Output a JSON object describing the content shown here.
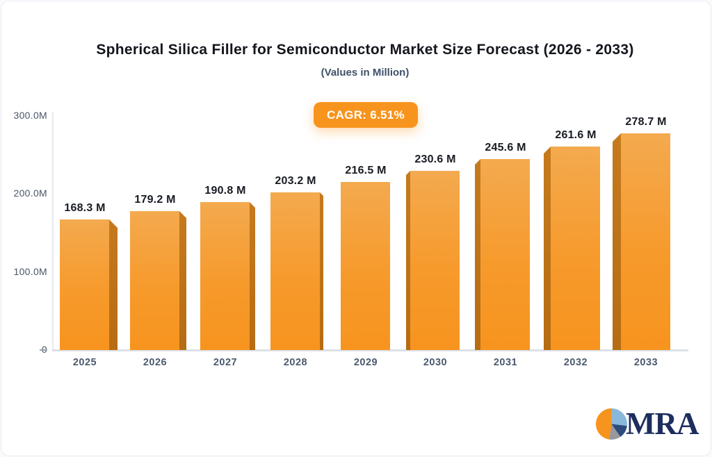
{
  "header": {
    "title": "Spherical Silica Filler for Semiconductor Market Size Forecast (2026 - 2033)",
    "subtitle": "(Values in Million)",
    "cagr_badge": "CAGR: 6.51%"
  },
  "chart_data": {
    "type": "bar",
    "title": "Spherical Silica Filler for Semiconductor Market Size Forecast (2026 - 2033)",
    "subtitle": "(Values in Million)",
    "cagr": "6.51%",
    "categories": [
      "2025",
      "2026",
      "2027",
      "2028",
      "2029",
      "2030",
      "2031",
      "2032",
      "2033"
    ],
    "values": [
      168.3,
      179.2,
      190.8,
      203.2,
      216.5,
      230.6,
      245.6,
      261.6,
      278.7
    ],
    "bar_labels": [
      "168.3 M",
      "179.2 M",
      "190.8 M",
      "203.2 M",
      "216.5 M",
      "230.6 M",
      "245.6 M",
      "261.6 M",
      "278.7 M"
    ],
    "y_ticks": [
      {
        "value": 300,
        "label": "300.0M"
      },
      {
        "value": 200,
        "label": "200.0M"
      },
      {
        "value": 100,
        "label": "100.0M"
      },
      {
        "value": 0,
        "label": "0"
      }
    ],
    "xlabel": "",
    "ylabel": "",
    "ylim": [
      0,
      300
    ],
    "grid": false,
    "legend": "none",
    "colors": {
      "bar_face_top": "#f4aa4f",
      "bar_face_bottom": "#f7941e",
      "bar_side": "#b56c13",
      "badge_bg": "#f7941e",
      "badge_text": "#ffffff",
      "title_text": "#14161d",
      "subtitle_text": "#3f5068",
      "axis_line": "#dce1e7",
      "tick_text": "#4a5668"
    }
  },
  "logo": {
    "text": "MRA",
    "pie_colors": {
      "orange": "#f7941e",
      "light_blue": "#8ab8da",
      "navy": "#2d4c7c",
      "gray": "#97999c"
    }
  }
}
